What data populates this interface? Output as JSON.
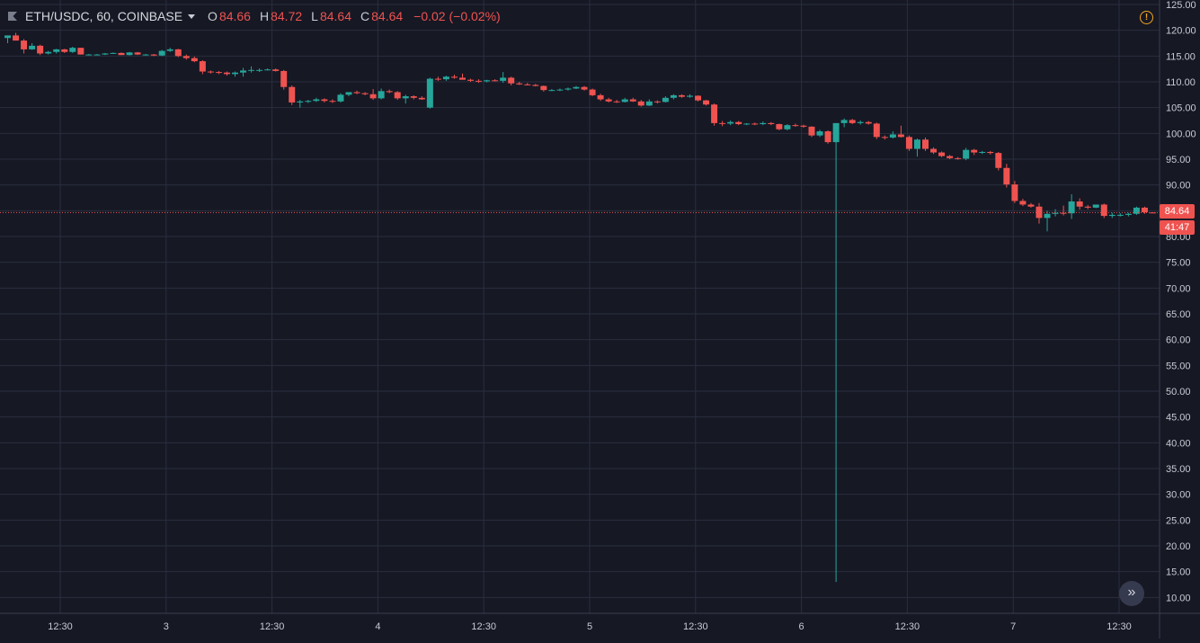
{
  "header": {
    "symbol": "ETH/USDC, 60, COINBASE",
    "open_label": "O",
    "open_value": "84.66",
    "high_label": "H",
    "high_value": "84.72",
    "low_label": "L",
    "low_value": "84.64",
    "close_label": "C",
    "close_value": "84.64",
    "change": "−0.02 (−0.02%)"
  },
  "price_scale": {
    "last_price": "84.64",
    "countdown": "41:47"
  },
  "colors": {
    "background": "#161824",
    "grid": "#2a2e3e",
    "up": "#26a69a",
    "down": "#ef5350",
    "axis_text": "#c9cbd3"
  },
  "chart_data": {
    "type": "candlestick",
    "interval": "60",
    "y_ticks": [
      "125.00",
      "120.00",
      "115.00",
      "110.00",
      "105.00",
      "100.00",
      "95.00",
      "90.00",
      "85.00",
      "80.00",
      "75.00",
      "70.00",
      "65.00",
      "60.00",
      "55.00",
      "50.00",
      "45.00",
      "40.00",
      "35.00",
      "30.00",
      "25.00",
      "20.00",
      "15.00",
      "10.00"
    ],
    "ylim": [
      5.5,
      125.5
    ],
    "x_labels": [
      "12:30",
      "3",
      "12:30",
      "4",
      "12:30",
      "5",
      "12:30",
      "6",
      "12:30",
      "7",
      "12:30"
    ],
    "grid": true,
    "start_index": -66,
    "candles": [
      [
        118.5,
        119.0,
        117.5,
        119.0
      ],
      [
        119.0,
        119.5,
        118.5,
        118.0
      ],
      [
        118.0,
        118.3,
        115.5,
        116.3
      ],
      [
        116.3,
        117.5,
        116.2,
        117.0
      ],
      [
        117.0,
        117.2,
        115.2,
        115.5
      ],
      [
        115.5,
        116.0,
        115.3,
        115.8
      ],
      [
        115.8,
        116.4,
        115.5,
        116.3
      ],
      [
        116.3,
        116.4,
        115.6,
        115.8
      ],
      [
        115.8,
        116.8,
        115.6,
        116.6
      ],
      [
        116.6,
        116.6,
        115.3,
        115.3
      ],
      [
        115.3,
        115.4,
        115.2,
        115.3
      ],
      [
        115.3,
        115.4,
        115.2,
        115.3
      ],
      [
        115.3,
        115.6,
        115.2,
        115.5
      ],
      [
        115.5,
        115.7,
        115.4,
        115.6
      ],
      [
        115.6,
        115.7,
        115.2,
        115.2
      ],
      [
        115.2,
        115.8,
        115.1,
        115.7
      ],
      [
        115.7,
        115.8,
        115.2,
        115.3
      ],
      [
        115.3,
        115.4,
        115.1,
        115.3
      ],
      [
        115.3,
        115.4,
        115.0,
        115.1
      ],
      [
        115.1,
        116.2,
        115.0,
        116.0
      ],
      [
        116.0,
        116.6,
        115.8,
        116.3
      ],
      [
        116.3,
        116.4,
        114.8,
        115.0
      ],
      [
        115.0,
        115.3,
        114.3,
        114.6
      ],
      [
        114.6,
        114.9,
        113.8,
        114.0
      ],
      [
        114.0,
        114.2,
        111.5,
        112.0
      ],
      [
        112.0,
        112.2,
        111.6,
        111.9
      ],
      [
        111.9,
        112.1,
        111.5,
        111.8
      ],
      [
        111.8,
        112.0,
        111.2,
        111.5
      ],
      [
        111.5,
        112.0,
        111.0,
        111.8
      ],
      [
        111.8,
        112.7,
        111.0,
        112.2
      ],
      [
        112.2,
        113.0,
        111.8,
        112.3
      ],
      [
        112.3,
        112.6,
        111.9,
        112.3
      ],
      [
        112.3,
        112.6,
        112.2,
        112.4
      ],
      [
        112.4,
        112.6,
        112.0,
        112.1
      ],
      [
        112.1,
        112.3,
        108.5,
        109.0
      ],
      [
        109.0,
        109.3,
        105.5,
        106.0
      ],
      [
        106.0,
        106.5,
        105.0,
        106.2
      ],
      [
        106.2,
        106.5,
        105.9,
        106.3
      ],
      [
        106.3,
        106.9,
        106.1,
        106.6
      ],
      [
        106.6,
        106.8,
        106.0,
        106.3
      ],
      [
        106.3,
        106.6,
        105.9,
        106.2
      ],
      [
        106.2,
        107.8,
        106.0,
        107.5
      ],
      [
        107.5,
        108.0,
        107.2,
        108.0
      ],
      [
        108.0,
        108.3,
        107.6,
        107.8
      ],
      [
        107.8,
        108.0,
        107.4,
        107.6
      ],
      [
        107.6,
        108.6,
        106.5,
        106.8
      ],
      [
        106.8,
        108.7,
        106.6,
        108.2
      ],
      [
        108.2,
        108.5,
        107.8,
        108.0
      ],
      [
        108.0,
        108.2,
        106.5,
        106.8
      ],
      [
        106.8,
        107.5,
        105.8,
        107.2
      ],
      [
        107.2,
        107.4,
        106.6,
        106.9
      ],
      [
        106.9,
        107.2,
        106.5,
        106.6
      ],
      [
        105.0,
        110.8,
        104.8,
        110.6
      ],
      [
        110.6,
        111.0,
        110.2,
        110.5
      ],
      [
        110.5,
        111.2,
        110.2,
        111.0
      ],
      [
        111.0,
        111.4,
        110.6,
        110.8
      ],
      [
        110.8,
        111.6,
        110.6,
        110.4
      ],
      [
        110.4,
        110.6,
        110.0,
        110.2
      ],
      [
        110.2,
        110.5,
        109.8,
        110.1
      ],
      [
        110.1,
        110.4,
        109.9,
        110.3
      ],
      [
        110.3,
        110.5,
        110.1,
        110.2
      ],
      [
        110.2,
        111.9,
        109.8,
        110.8
      ],
      [
        110.8,
        111.0,
        109.3,
        109.7
      ],
      [
        109.7,
        110.0,
        109.4,
        109.5
      ],
      [
        109.5,
        109.8,
        109.3,
        109.4
      ],
      [
        109.4,
        109.6,
        109.1,
        109.2
      ],
      [
        109.2,
        109.3,
        108.1,
        108.4
      ],
      [
        108.4,
        108.6,
        108.2,
        108.4
      ],
      [
        108.4,
        108.7,
        108.2,
        108.5
      ],
      [
        108.5,
        108.9,
        108.3,
        108.7
      ],
      [
        108.7,
        109.2,
        108.6,
        109.0
      ],
      [
        109.0,
        109.2,
        108.3,
        108.5
      ],
      [
        108.5,
        108.7,
        107.2,
        107.4
      ],
      [
        107.4,
        107.7,
        106.3,
        106.6
      ],
      [
        106.6,
        106.9,
        106.0,
        106.2
      ],
      [
        106.2,
        106.5,
        105.9,
        106.1
      ],
      [
        106.1,
        106.9,
        106.0,
        106.6
      ],
      [
        106.6,
        106.9,
        106.1,
        106.2
      ],
      [
        106.2,
        106.5,
        105.2,
        105.4
      ],
      [
        105.4,
        106.6,
        105.3,
        106.2
      ],
      [
        106.2,
        106.4,
        105.8,
        106.1
      ],
      [
        106.1,
        107.2,
        106.0,
        106.9
      ],
      [
        106.9,
        107.6,
        106.6,
        107.4
      ],
      [
        107.4,
        107.6,
        106.9,
        107.1
      ],
      [
        107.1,
        107.6,
        106.9,
        107.3
      ],
      [
        107.3,
        107.4,
        106.2,
        106.4
      ],
      [
        106.4,
        106.5,
        105.4,
        105.6
      ],
      [
        105.6,
        105.8,
        101.5,
        102.0
      ],
      [
        102.0,
        102.4,
        101.4,
        101.9
      ],
      [
        101.9,
        102.5,
        101.6,
        102.2
      ],
      [
        102.2,
        102.4,
        101.6,
        101.8
      ],
      [
        101.8,
        102.0,
        101.6,
        101.9
      ],
      [
        101.9,
        102.1,
        101.6,
        101.8
      ],
      [
        101.8,
        102.3,
        101.6,
        102.0
      ],
      [
        102.0,
        102.2,
        101.6,
        101.8
      ],
      [
        101.8,
        101.9,
        100.6,
        100.8
      ],
      [
        100.8,
        101.8,
        100.6,
        101.6
      ],
      [
        101.6,
        101.9,
        101.3,
        101.5
      ],
      [
        101.5,
        101.7,
        101.1,
        101.3
      ],
      [
        101.3,
        101.4,
        99.3,
        99.6
      ],
      [
        99.6,
        100.7,
        99.3,
        100.4
      ],
      [
        100.4,
        100.6,
        98.0,
        98.3
      ],
      [
        98.3,
        101.9,
        13.0,
        102.0
      ],
      [
        102.0,
        102.9,
        101.2,
        102.6
      ],
      [
        102.6,
        102.8,
        101.8,
        102.0
      ],
      [
        102.0,
        102.5,
        101.7,
        102.2
      ],
      [
        102.2,
        102.4,
        101.7,
        101.9
      ],
      [
        101.9,
        102.1,
        98.9,
        99.3
      ],
      [
        99.3,
        99.6,
        98.8,
        99.2
      ],
      [
        99.2,
        100.4,
        99.0,
        99.8
      ],
      [
        99.8,
        101.5,
        99.2,
        99.3
      ],
      [
        99.3,
        99.6,
        96.6,
        97.0
      ],
      [
        97.0,
        99.0,
        95.5,
        98.8
      ],
      [
        98.8,
        99.2,
        96.6,
        97.0
      ],
      [
        97.0,
        97.3,
        96.0,
        96.3
      ],
      [
        96.3,
        96.5,
        95.4,
        95.6
      ],
      [
        95.6,
        95.8,
        95.0,
        95.2
      ],
      [
        95.2,
        95.4,
        94.9,
        95.1
      ],
      [
        95.1,
        97.2,
        94.8,
        96.8
      ],
      [
        96.8,
        97.0,
        95.8,
        96.3
      ],
      [
        96.3,
        96.6,
        96.0,
        96.4
      ],
      [
        96.4,
        96.6,
        95.9,
        96.2
      ],
      [
        96.2,
        96.4,
        92.8,
        93.3
      ],
      [
        93.3,
        94.1,
        89.5,
        90.1
      ],
      [
        90.1,
        90.8,
        86.5,
        86.9
      ],
      [
        86.9,
        87.3,
        85.9,
        86.2
      ],
      [
        86.2,
        86.5,
        85.6,
        85.8
      ],
      [
        85.8,
        86.5,
        82.5,
        83.6
      ],
      [
        83.6,
        85.0,
        81.0,
        84.4
      ],
      [
        84.4,
        85.3,
        83.9,
        84.6
      ],
      [
        84.6,
        86.0,
        84.1,
        84.5
      ],
      [
        84.5,
        88.2,
        83.4,
        86.8
      ],
      [
        86.8,
        87.4,
        85.2,
        85.8
      ],
      [
        85.8,
        86.1,
        85.3,
        85.6
      ],
      [
        85.6,
        86.0,
        85.5,
        86.2
      ],
      [
        86.2,
        86.4,
        83.6,
        84.0
      ],
      [
        84.0,
        84.6,
        83.6,
        84.2
      ],
      [
        84.2,
        84.5,
        83.9,
        84.2
      ],
      [
        84.2,
        84.6,
        83.9,
        84.4
      ],
      [
        84.4,
        85.8,
        84.2,
        85.6
      ],
      [
        85.6,
        85.8,
        84.4,
        84.7
      ],
      [
        84.66,
        84.72,
        84.64,
        84.64
      ]
    ]
  }
}
